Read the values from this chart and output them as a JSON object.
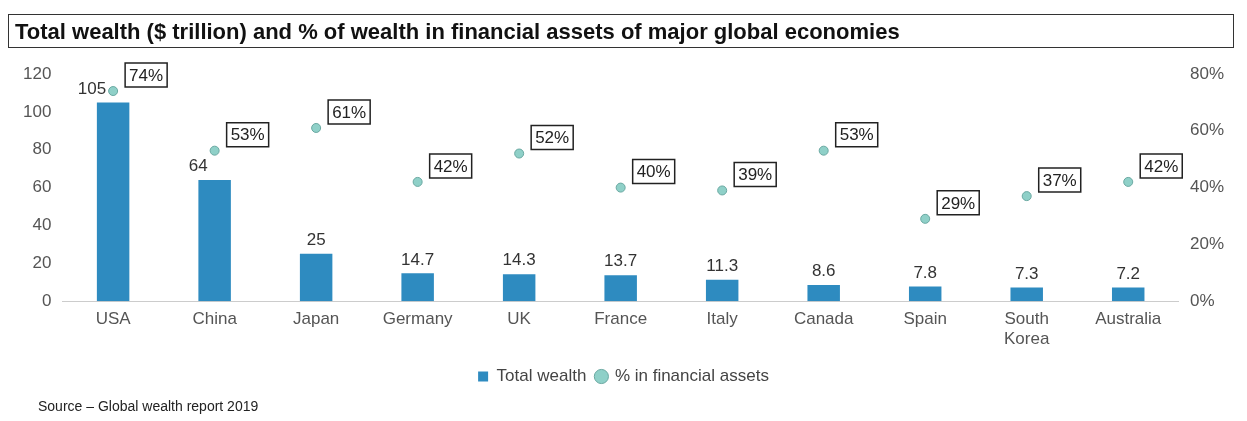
{
  "chart_data": {
    "type": "bar",
    "title": "Total wealth ($ trillion) and % of wealth in financial assets of major global economies",
    "categories": [
      "USA",
      "China",
      "Japan",
      "Germany",
      "UK",
      "France",
      "Italy",
      "Canada",
      "Spain",
      "South Korea",
      "Australia"
    ],
    "series": [
      {
        "name": "Total wealth",
        "color": "#2e8bc0",
        "values": [
          105,
          64,
          25,
          14.7,
          14.3,
          13.7,
          11.3,
          8.6,
          7.8,
          7.3,
          7.2
        ],
        "value_labels": [
          "105",
          "64",
          "25",
          "14.7",
          "14.3",
          "13.7",
          "11.3",
          "8.6",
          "7.8",
          "7.3",
          "7.2"
        ]
      },
      {
        "name": "% in financial assets",
        "type": "scatter",
        "axis": "y2",
        "color": "#8fd0c8",
        "values": [
          74,
          53,
          61,
          42,
          52,
          40,
          39,
          53,
          29,
          37,
          42
        ],
        "value_labels": [
          "74%",
          "53%",
          "61%",
          "42%",
          "52%",
          "40%",
          "39%",
          "53%",
          "29%",
          "37%",
          "42%"
        ]
      }
    ],
    "ylim": [
      0,
      120
    ],
    "yticks": [
      0,
      20,
      40,
      60,
      80,
      100,
      120
    ],
    "y2lim": [
      0,
      80
    ],
    "y2ticks": [
      {
        "value": 0,
        "label": "0%"
      },
      {
        "value": 20,
        "label": "20%"
      },
      {
        "value": 40,
        "label": "40%"
      },
      {
        "value": 60,
        "label": "60%"
      },
      {
        "value": 80,
        "label": "80%"
      }
    ],
    "grid": false,
    "legend": "bottom",
    "marker": "circle",
    "annotations": [
      "Source – Global wealth report 2019"
    ]
  }
}
